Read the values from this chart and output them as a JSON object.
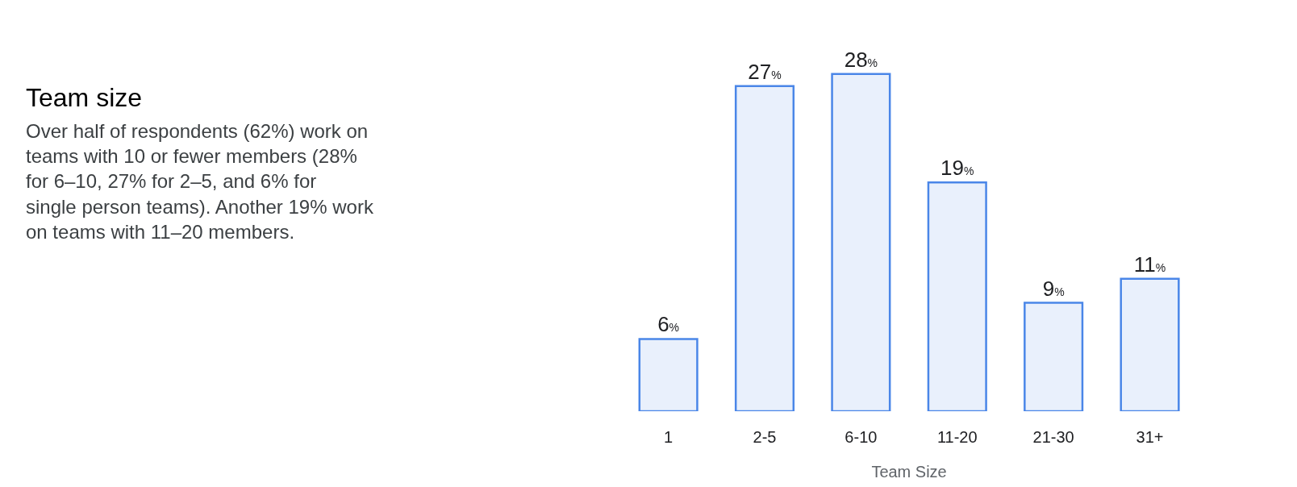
{
  "chart_data": {
    "type": "bar",
    "title": "Team size",
    "subtitle": "Over half of respondents (62%) work on teams with 10 or fewer members (28% for 6–10, 27% for 2–5, and 6% for single person teams). Another 19% work on teams with 11–20 members.",
    "xlabel": "Team Size",
    "categories": [
      "1",
      "2-5",
      "6-10",
      "11-20",
      "21-30",
      "31+"
    ],
    "series": [
      {
        "color": "#4a86e8",
        "values": [
          6,
          27,
          28,
          19,
          9,
          11
        ],
        "value_labels": [
          "6%",
          "27%",
          "28%",
          "19%",
          "9%",
          "11%"
        ]
      }
    ]
  }
}
